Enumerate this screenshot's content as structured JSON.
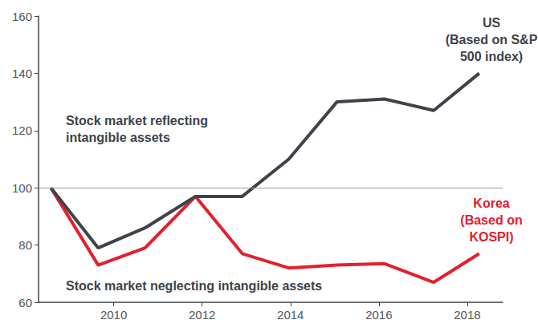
{
  "chart_data": {
    "type": "line",
    "x": [
      2008.58,
      2009.65,
      2010.71,
      2011.85,
      2012.91,
      2013.96,
      2015.05,
      2016.13,
      2017.24,
      2018.27
    ],
    "series": [
      {
        "name": "US\n(Based on S&P\n500 index)",
        "color": "#3d4349",
        "values": [
          100,
          79,
          86,
          97,
          97,
          110,
          130,
          131,
          127,
          140
        ]
      },
      {
        "name": "Korea\n(Based on\nKOSPI)",
        "color": "#e3202d",
        "values": [
          100,
          73,
          79,
          97,
          77,
          72,
          73,
          73.5,
          67,
          77
        ]
      }
    ],
    "annotations": [
      "Stock market reflecting\nintangible assets",
      "Stock market neglecting intangible assets"
    ],
    "baseline": 100,
    "xlim": [
      2008.3,
      2018.8
    ],
    "xticks": [
      2010,
      2012,
      2014,
      2016,
      2018
    ],
    "ylim": [
      60,
      160
    ],
    "yticks": [
      60,
      80,
      100,
      120,
      140,
      160
    ],
    "grid": false,
    "legend": "none"
  }
}
